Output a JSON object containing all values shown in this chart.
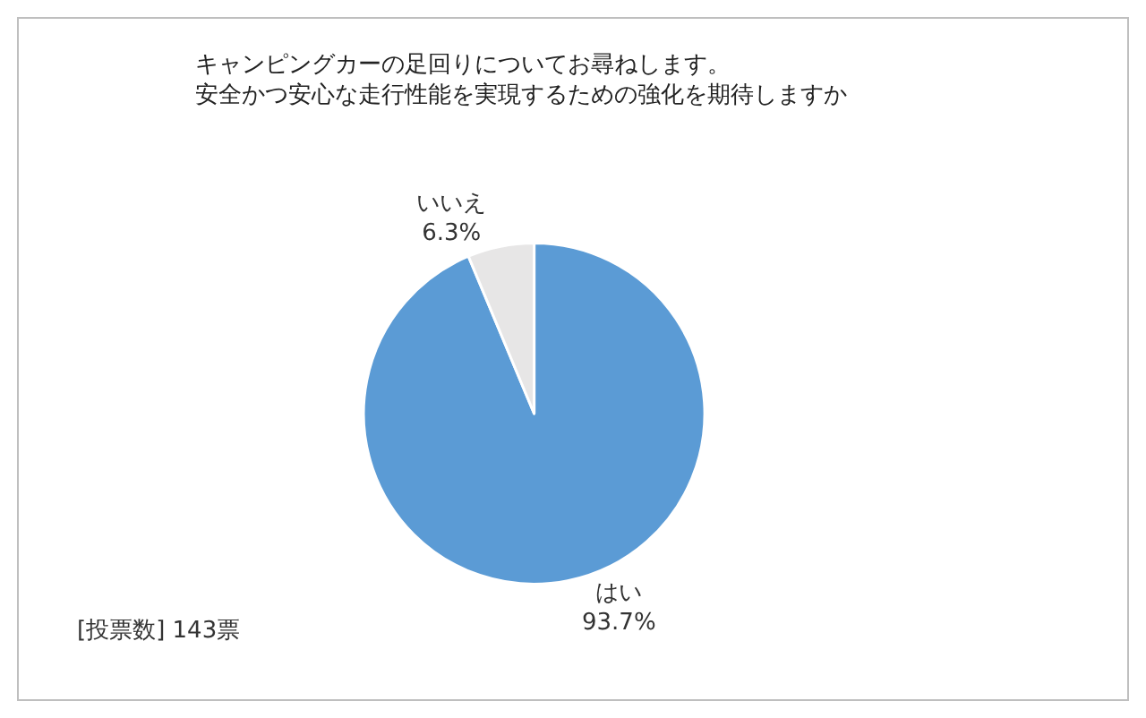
{
  "chart_data": {
    "type": "pie",
    "title": "キャンピングカーの足回りについてお尋ねします。",
    "subtitle": "安全かつ安心な走行性能を実現するための強化を期待しますか",
    "categories": [
      "はい",
      "いいえ"
    ],
    "values": [
      93.7,
      6.3
    ],
    "value_labels": [
      "93.7%",
      "6.3%"
    ],
    "colors": [
      "#5b9bd5",
      "#e7e6e6"
    ],
    "annotations": [
      "[投票数] 143票"
    ],
    "legend": false
  }
}
